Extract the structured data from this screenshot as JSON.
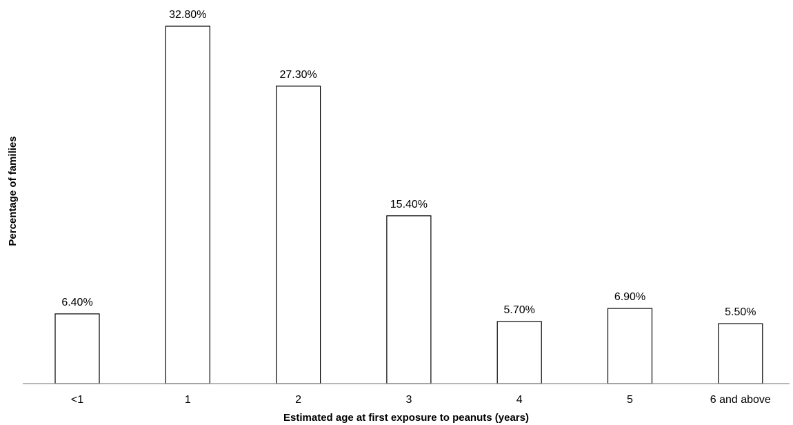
{
  "chart_data": {
    "type": "bar",
    "title": "",
    "xlabel": "Estimated age at first exposure to peanuts (years)",
    "ylabel": "Percentage of families",
    "categories": [
      "<1",
      "1",
      "2",
      "3",
      "4",
      "5",
      "6 and above"
    ],
    "values": [
      6.4,
      32.8,
      27.3,
      15.4,
      5.7,
      6.9,
      5.5
    ],
    "data_labels": [
      "6.40%",
      "32.80%",
      "27.30%",
      "15.40%",
      "5.70%",
      "6.90%",
      "5.50%"
    ],
    "ylim": [
      0,
      33
    ],
    "grid": false,
    "legend": "none",
    "bar_fill": "#ffffff",
    "bar_stroke": "#000000"
  }
}
